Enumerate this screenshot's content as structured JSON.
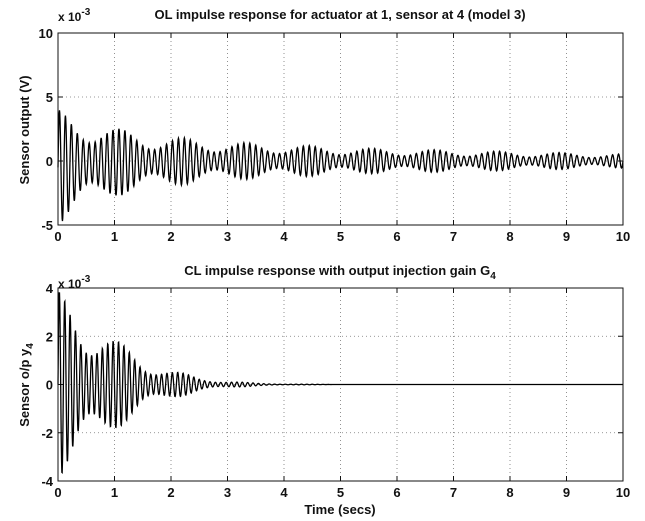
{
  "chart_data": [
    {
      "type": "line",
      "title": "OL impulse response for actuator at 1, sensor at 4 (model 3)",
      "xlabel": "",
      "ylabel": "Sensor output (V)",
      "exponent_base": "x 10",
      "exponent_power": "-3",
      "xlim": [
        0,
        10
      ],
      "ylim": [
        -5,
        10
      ],
      "x_ticks": [
        "0",
        "1",
        "2",
        "3",
        "4",
        "5",
        "6",
        "7",
        "8",
        "9",
        "10"
      ],
      "y_ticks": [
        "-5",
        "0",
        "5",
        "10"
      ],
      "grid": true,
      "series": [
        {
          "description_of_signal": "lightly damped oscillation",
          "x": [
            0,
            0.5,
            1,
            1.5,
            2,
            2.5,
            3,
            3.5,
            4,
            4.5,
            5,
            5.5,
            6,
            6.5,
            7,
            7.5,
            8,
            8.5,
            9,
            9.5,
            10
          ],
          "envelope_upper": [
            4.0,
            3.5,
            2.6,
            2.2,
            1.9,
            1.7,
            1.5,
            1.4,
            1.3,
            1.2,
            1.1,
            1.0,
            0.95,
            0.9,
            0.85,
            0.8,
            0.75,
            0.7,
            0.65,
            0.6,
            0.55
          ],
          "envelope_lower": [
            -5.0,
            -3.8,
            -2.8,
            -2.3,
            -2.0,
            -1.7,
            -1.5,
            -1.4,
            -1.3,
            -1.2,
            -1.1,
            -1.0,
            -0.95,
            -0.9,
            -0.85,
            -0.8,
            -0.75,
            -0.7,
            -0.65,
            -0.6,
            -0.55
          ]
        }
      ]
    },
    {
      "type": "line",
      "title": "CL impulse response with output injection gain G",
      "title_subscript": "4",
      "xlabel": "Time (secs)",
      "ylabel": "Sensor o/p y",
      "ylabel_subscript": "4",
      "exponent_base": "x 10",
      "exponent_power": "-3",
      "xlim": [
        0,
        10
      ],
      "ylim": [
        -4,
        4
      ],
      "x_ticks": [
        "0",
        "1",
        "2",
        "3",
        "4",
        "5",
        "6",
        "7",
        "8",
        "9",
        "10"
      ],
      "y_ticks": [
        "-4",
        "-2",
        "0",
        "2",
        "4"
      ],
      "grid": true,
      "series": [
        {
          "x": [
            0,
            0.25,
            0.5,
            1,
            1.5,
            2,
            2.5,
            3,
            3.5,
            4,
            4.5,
            5,
            6,
            7,
            8,
            9,
            10
          ],
          "envelope_upper": [
            3.9,
            3.5,
            2.9,
            1.9,
            1.1,
            0.6,
            0.3,
            0.14,
            0.06,
            0.02,
            0.01,
            0.0,
            0.0,
            0.0,
            0.0,
            0.0,
            0.0
          ],
          "envelope_lower": [
            -3.9,
            -3.5,
            -2.9,
            -1.9,
            -1.1,
            -0.6,
            -0.3,
            -0.14,
            -0.06,
            -0.02,
            -0.01,
            0.0,
            0.0,
            0.0,
            0.0,
            0.0,
            0.0
          ]
        }
      ]
    }
  ]
}
